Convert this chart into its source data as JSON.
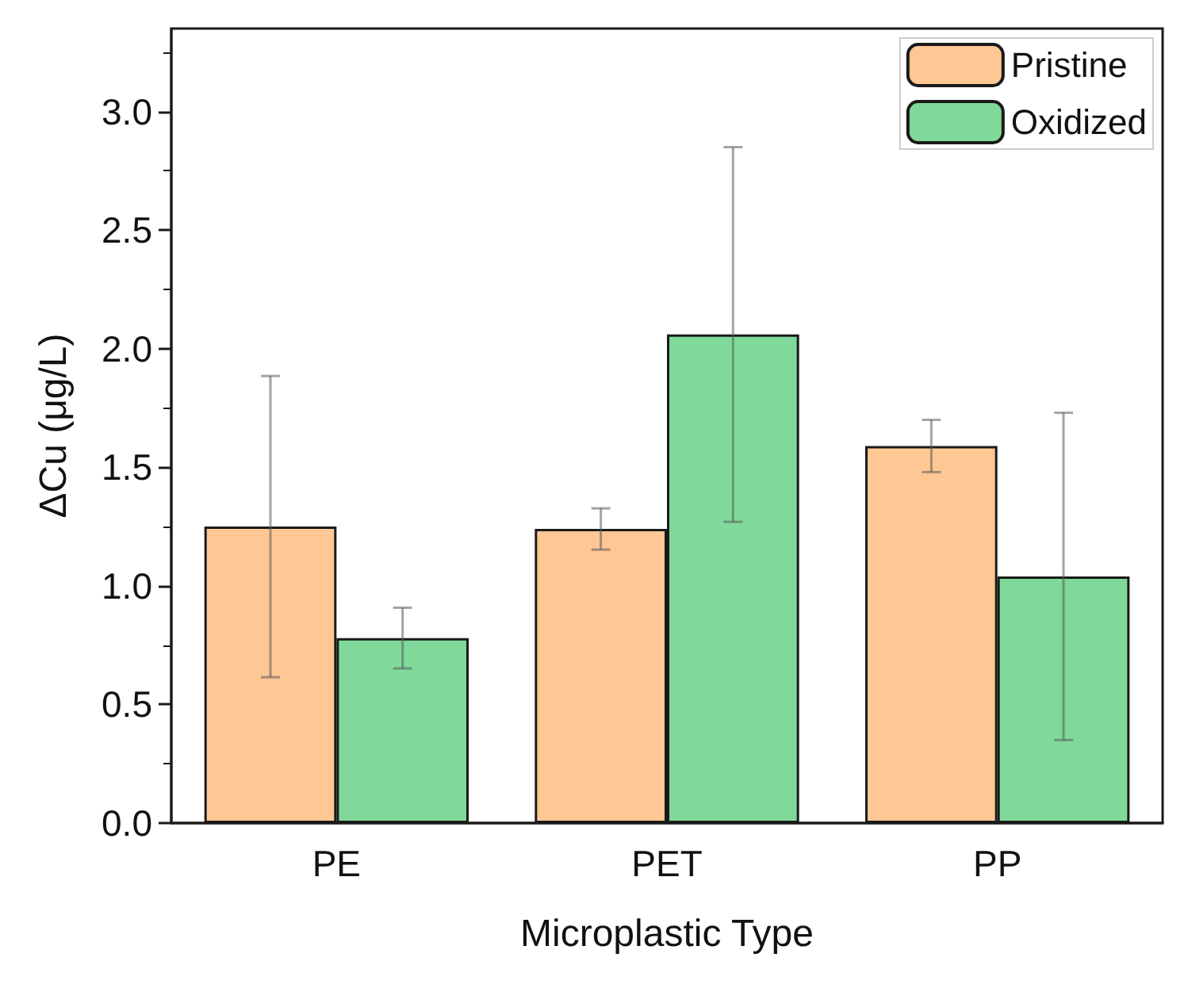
{
  "chart_data": {
    "type": "bar",
    "xlabel": "Microplastic Type",
    "ylabel": "ΔCu (μg/L)",
    "categories": [
      "PE",
      "PET",
      "PP"
    ],
    "series": [
      {
        "name": "Pristine",
        "color": "#fec794",
        "values": [
          1.25,
          1.24,
          1.59
        ],
        "errors": [
          0.635,
          0.087,
          0.11
        ]
      },
      {
        "name": "Oxidized",
        "color": "#7fd99a",
        "values": [
          0.78,
          2.06,
          1.04
        ],
        "errors": [
          0.128,
          0.79,
          0.69
        ]
      }
    ],
    "ylim": [
      0,
      3.35
    ],
    "yticks": [
      {
        "value": 0,
        "label": "0.0"
      },
      {
        "value": 0.5,
        "label": "0.5"
      },
      {
        "value": 1,
        "label": "1.0"
      },
      {
        "value": 1.5,
        "label": "1.5"
      },
      {
        "value": 2,
        "label": "2.0"
      },
      {
        "value": 2.5,
        "label": "2.5"
      },
      {
        "value": 3,
        "label": "3.0"
      }
    ],
    "grid": false,
    "legend": "top right"
  }
}
